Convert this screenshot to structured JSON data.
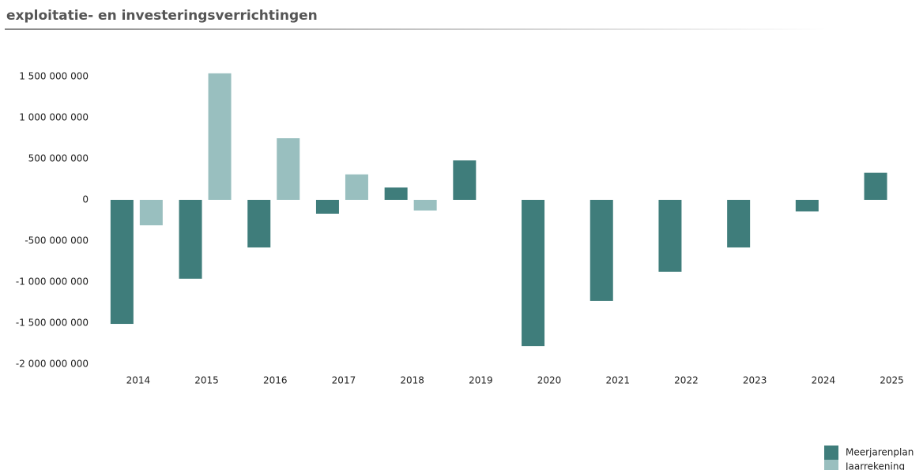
{
  "chart_data": {
    "type": "bar",
    "title": "exploitatie- en investeringsverrichtingen",
    "categories": [
      "2014",
      "2015",
      "2016",
      "2017",
      "2018",
      "2019",
      "2020",
      "2021",
      "2022",
      "2023",
      "2024",
      "2025"
    ],
    "series": [
      {
        "name": "Meerjarenplan",
        "color": "#3f7d7b",
        "values": [
          -1510000000,
          -960000000,
          -580000000,
          -170000000,
          150000000,
          480000000,
          -1780000000,
          -1230000000,
          -875000000,
          -580000000,
          -140000000,
          330000000
        ]
      },
      {
        "name": "Jaarrekening",
        "color": "#99bfbf",
        "values": [
          -310000000,
          1540000000,
          750000000,
          310000000,
          -130000000,
          null,
          null,
          null,
          null,
          null,
          null,
          null
        ]
      }
    ],
    "ylim": [
      -2000000000,
      1600000000
    ],
    "yticks": [
      {
        "value": 1500000000,
        "label": "1 500 000 000"
      },
      {
        "value": 1000000000,
        "label": "1 000 000 000"
      },
      {
        "value": 500000000,
        "label": "500 000 000"
      },
      0,
      {
        "value": -500000000,
        "label": "-500 000 000"
      },
      {
        "value": -1000000000,
        "label": "-1 000 000 000"
      },
      {
        "value": -1500000000,
        "label": "-1 500 000 000"
      },
      {
        "value": -2000000000,
        "label": "-2 000 000 000"
      }
    ],
    "grid": false,
    "legend": "bottom-right"
  }
}
